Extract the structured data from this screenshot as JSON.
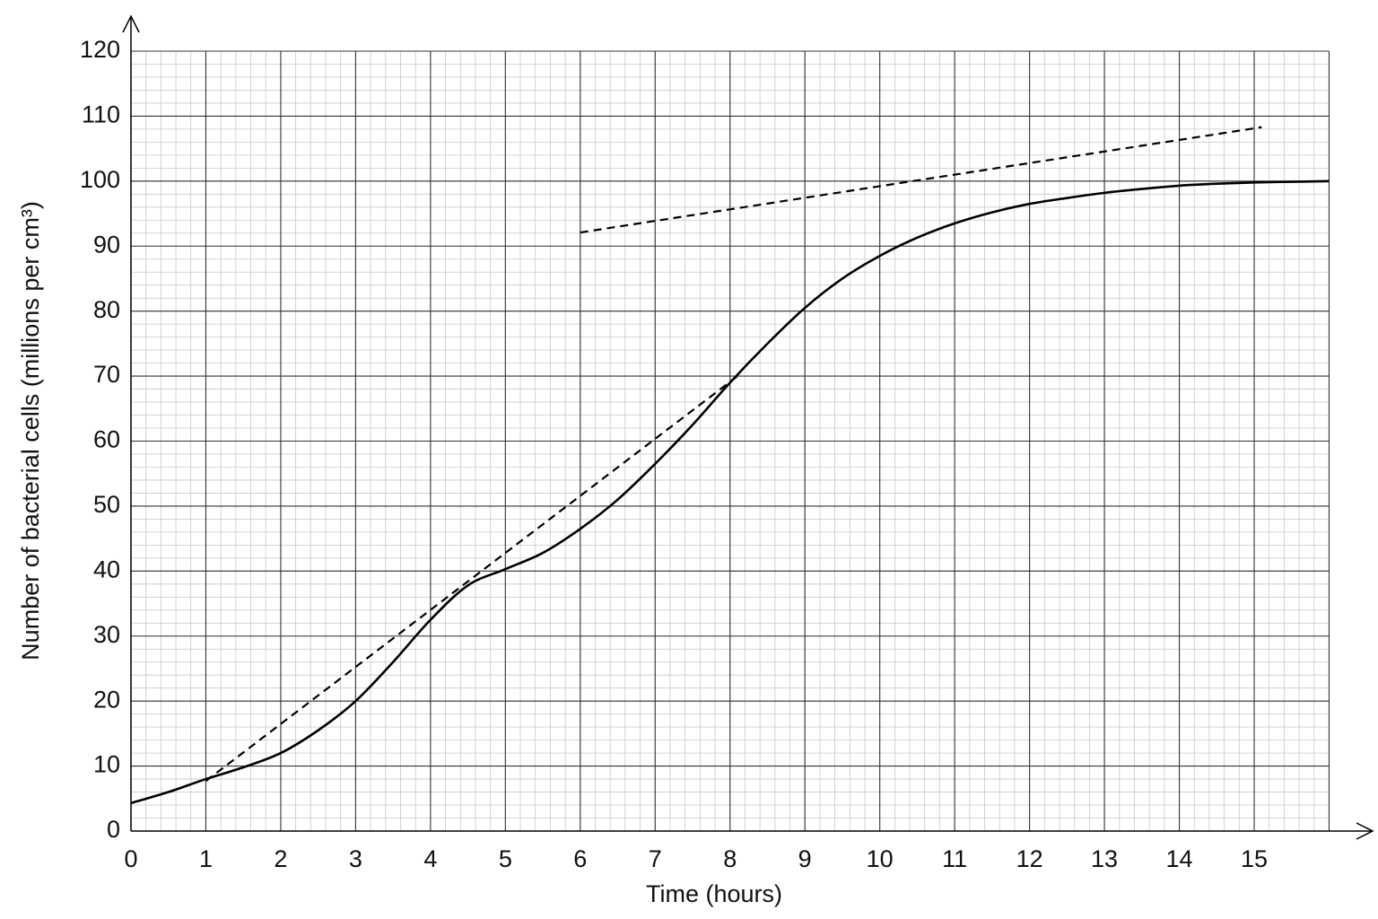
{
  "chart_data": {
    "type": "line",
    "xlabel": "Time (hours)",
    "ylabel": "Number of bacterial cells (millions per cm³)",
    "series": [
      {
        "color": "#000000",
        "dashed": false,
        "x": [
          0,
          0.5,
          1,
          1.5,
          2,
          2.5,
          3,
          3.5,
          4,
          4.5,
          5,
          5.5,
          6,
          6.5,
          7,
          7.5,
          8,
          8.5,
          9,
          9.5,
          10,
          10.5,
          11,
          11.5,
          12,
          12.5,
          13,
          13.5,
          14,
          14.5,
          15,
          15.5,
          16
        ],
        "values": [
          4.3,
          6,
          8,
          9.8,
          12,
          15.5,
          20,
          26,
          32.5,
          37.8,
          40.3,
          42.8,
          46.5,
          51,
          56.5,
          62.5,
          69,
          75,
          80.5,
          85,
          88.5,
          91.3,
          93.5,
          95.2,
          96.5,
          97.4,
          98.2,
          98.8,
          99.3,
          99.6,
          99.8,
          99.9,
          100
        ]
      },
      {
        "color": "#000000",
        "dashed": true,
        "x": [
          1,
          8.1
        ],
        "values": [
          7.7,
          70
        ]
      },
      {
        "color": "#000000",
        "dashed": true,
        "x": [
          6,
          15.1
        ],
        "values": [
          92.1,
          108.3
        ]
      }
    ],
    "xlim": [
      0,
      16
    ],
    "ylim": [
      0,
      120
    ],
    "xticks": [
      0,
      1,
      2,
      3,
      4,
      5,
      6,
      7,
      8,
      9,
      10,
      11,
      12,
      13,
      14,
      15
    ],
    "yticks": [
      0,
      10,
      20,
      30,
      40,
      50,
      60,
      70,
      80,
      90,
      100,
      110,
      120
    ],
    "grid": true
  }
}
